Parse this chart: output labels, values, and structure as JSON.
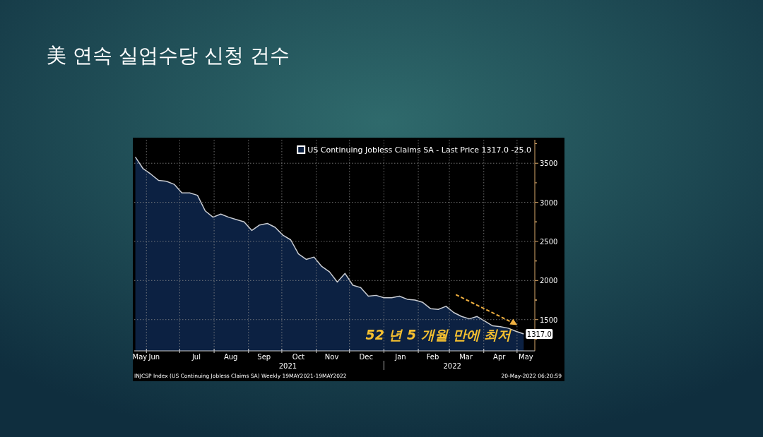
{
  "chart_data": {
    "type": "area",
    "title": "美 연속 실업수당 신청 건수",
    "x": [
      "2021-05-22",
      "2021-05-29",
      "2021-06-05",
      "2021-06-12",
      "2021-06-19",
      "2021-06-26",
      "2021-07-03",
      "2021-07-10",
      "2021-07-17",
      "2021-07-24",
      "2021-07-31",
      "2021-08-07",
      "2021-08-14",
      "2021-08-21",
      "2021-08-28",
      "2021-09-04",
      "2021-09-11",
      "2021-09-18",
      "2021-09-25",
      "2021-10-02",
      "2021-10-09",
      "2021-10-16",
      "2021-10-23",
      "2021-10-30",
      "2021-11-06",
      "2021-11-13",
      "2021-11-20",
      "2021-11-27",
      "2021-12-04",
      "2021-12-11",
      "2021-12-18",
      "2021-12-25",
      "2022-01-01",
      "2022-01-08",
      "2022-01-15",
      "2022-01-22",
      "2022-01-29",
      "2022-02-05",
      "2022-02-12",
      "2022-02-19",
      "2022-02-26",
      "2022-03-05",
      "2022-03-12",
      "2022-03-19",
      "2022-03-26",
      "2022-04-02",
      "2022-04-09",
      "2022-04-16",
      "2022-04-23",
      "2022-04-30",
      "2022-05-07"
    ],
    "series": [
      {
        "name": "US Continuing Jobless Claims SA - Last Price 1317.0  -25.0",
        "color": "#0c2142",
        "values": [
          3580,
          3430,
          3360,
          3280,
          3270,
          3230,
          3120,
          3120,
          3090,
          2890,
          2810,
          2850,
          2810,
          2780,
          2750,
          2640,
          2710,
          2730,
          2680,
          2580,
          2520,
          2340,
          2270,
          2300,
          2180,
          2110,
          1980,
          2090,
          1940,
          1910,
          1800,
          1810,
          1780,
          1780,
          1800,
          1760,
          1750,
          1720,
          1640,
          1630,
          1670,
          1590,
          1540,
          1510,
          1540,
          1480,
          1420,
          1410,
          1390,
          1350,
          1317
        ],
        "value_labels": [
          null,
          null,
          null,
          null,
          null,
          null,
          null,
          null,
          null,
          null,
          null,
          null,
          null,
          null,
          null,
          null,
          null,
          null,
          null,
          null,
          null,
          null,
          null,
          null,
          null,
          null,
          null,
          null,
          null,
          null,
          null,
          null,
          null,
          null,
          null,
          null,
          null,
          null,
          null,
          null,
          null,
          null,
          null,
          null,
          null,
          null,
          null,
          null,
          null,
          null,
          "1317.0"
        ]
      }
    ],
    "xlim": [
      "2021-05-21",
      "2022-05-17"
    ],
    "xticks": [
      {
        "value": "2021-05-26",
        "label": "May"
      },
      {
        "value": "2021-06-01",
        "label": null
      },
      {
        "value": "2021-06-08",
        "label": "Jun"
      },
      {
        "value": "2021-07-01",
        "label": null
      },
      {
        "value": "2021-07-16",
        "label": "Jul"
      },
      {
        "value": "2021-08-01",
        "label": null
      },
      {
        "value": "2021-08-16",
        "label": "Aug"
      },
      {
        "value": "2021-09-01",
        "label": null
      },
      {
        "value": "2021-09-15",
        "label": "Sep"
      },
      {
        "value": "2021-10-01",
        "label": null
      },
      {
        "value": "2021-10-16",
        "label": "Oct"
      },
      {
        "value": "2021-11-01",
        "label": null
      },
      {
        "value": "2021-11-15",
        "label": "Nov"
      },
      {
        "value": "2021-12-01",
        "label": null
      },
      {
        "value": "2021-12-16",
        "label": "Dec"
      },
      {
        "value": "2022-01-01",
        "label": null
      },
      {
        "value": "2022-01-16",
        "label": "Jan"
      },
      {
        "value": "2022-02-01",
        "label": null
      },
      {
        "value": "2022-02-14",
        "label": "Feb"
      },
      {
        "value": "2022-03-01",
        "label": null
      },
      {
        "value": "2022-03-16",
        "label": "Mar"
      },
      {
        "value": "2022-04-01",
        "label": null
      },
      {
        "value": "2022-04-15",
        "label": "Apr"
      },
      {
        "value": "2022-05-01",
        "label": null
      },
      {
        "value": "2022-05-09",
        "label": "May"
      }
    ],
    "ylim": [
      1100,
      3800
    ],
    "yticks": [
      1500,
      2000,
      2500,
      3000,
      3500
    ],
    "grid": true,
    "legend": "top right",
    "annotations": [
      {
        "text": "52 년 5 개월 만에 최저",
        "x": "2022-04-30",
        "y": 1349
      },
      "2021",
      "2022",
      "INJCSP Index (US Continuing Jobless Claims SA)  Weekly 19MAY2021-19MAY2022",
      "20-May-2022 06:20:59"
    ]
  }
}
